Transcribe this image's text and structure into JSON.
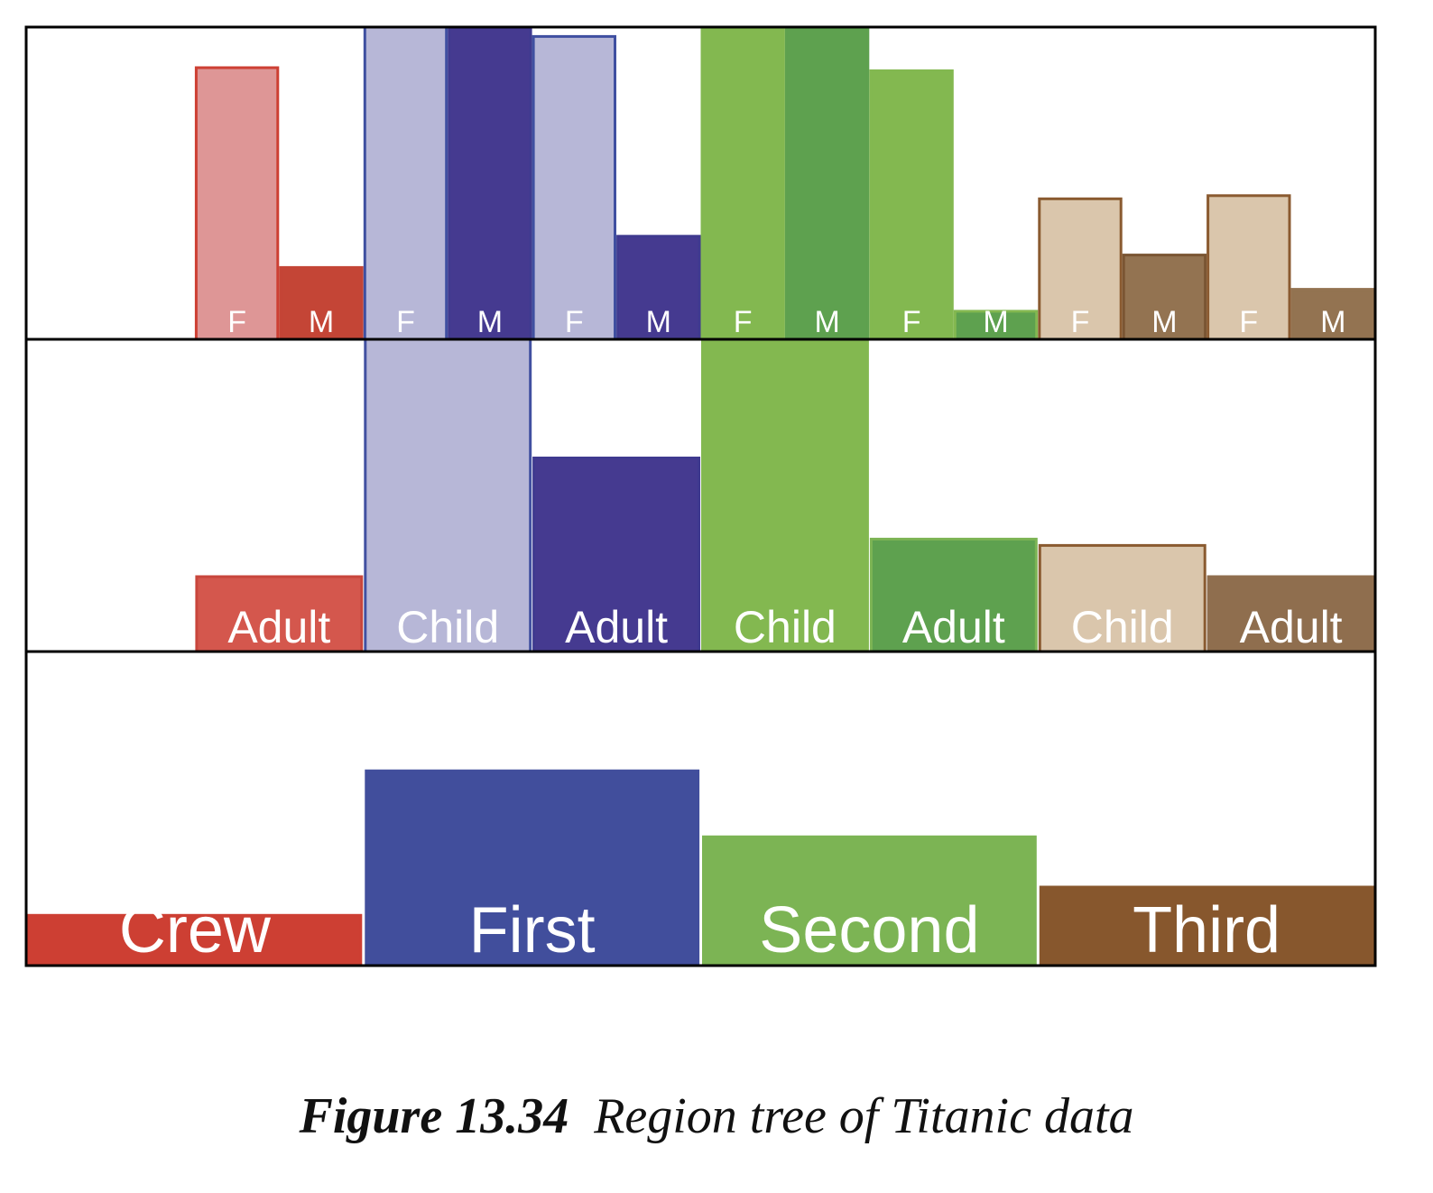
{
  "chart_data": {
    "type": "bar",
    "description_levels": [
      "class",
      "age",
      "sex"
    ],
    "levels": [
      {
        "name": "class",
        "bars": [
          {
            "label": "Crew",
            "value": 0.16,
            "fill": "#cd3f33",
            "stroke": "#cd3f33"
          },
          {
            "label": "First",
            "value": 0.62,
            "fill": "#414e9c",
            "stroke": "#414e9c"
          },
          {
            "label": "Second",
            "value": 0.41,
            "fill": "#7cb454",
            "stroke": "#7cb454"
          },
          {
            "label": "Third",
            "value": 0.25,
            "fill": "#87572d",
            "stroke": "#87572d"
          }
        ]
      },
      {
        "name": "age",
        "bars": [
          {
            "label": "",
            "value": 0.0,
            "fill": "#ffffff",
            "stroke": "#ffffff"
          },
          {
            "label": "Adult",
            "value": 0.24,
            "fill": "#d4574d",
            "stroke": "#c8463c"
          },
          {
            "label": "Child",
            "value": 1.0,
            "fill": "#b7b7d7",
            "stroke": "#4150a0"
          },
          {
            "label": "Adult",
            "value": 0.62,
            "fill": "#453a90",
            "stroke": "#3f3a8f"
          },
          {
            "label": "Child",
            "value": 1.0,
            "fill": "#83b850",
            "stroke": "#83b850"
          },
          {
            "label": "Adult",
            "value": 0.36,
            "fill": "#5ea14f",
            "stroke": "#7cb454"
          },
          {
            "label": "Child",
            "value": 0.34,
            "fill": "#dac6ac",
            "stroke": "#8a5a30"
          },
          {
            "label": "Adult",
            "value": 0.24,
            "fill": "#8f6e4e",
            "stroke": "#8f6e4e"
          }
        ]
      },
      {
        "name": "sex",
        "bars": [
          {
            "label": "",
            "value": 0.0,
            "fill": "#ffffff",
            "stroke": "#ffffff"
          },
          {
            "label": "",
            "value": 0.0,
            "fill": "#ffffff",
            "stroke": "#ffffff"
          },
          {
            "label": "F",
            "value": 0.87,
            "fill": "#de9696",
            "stroke": "#cd3f33"
          },
          {
            "label": "M",
            "value": 0.23,
            "fill": "#c44536",
            "stroke": "#c44536"
          },
          {
            "label": "F",
            "value": 1.0,
            "fill": "#b7b7d7",
            "stroke": "#3f4fa0"
          },
          {
            "label": "M",
            "value": 1.0,
            "fill": "#453a90",
            "stroke": "#3f3a8f"
          },
          {
            "label": "F",
            "value": 0.97,
            "fill": "#b7b7d7",
            "stroke": "#3f4fa0"
          },
          {
            "label": "M",
            "value": 0.33,
            "fill": "#453a90",
            "stroke": "#3f3a8f"
          },
          {
            "label": "F",
            "value": 1.0,
            "fill": "#83b850",
            "stroke": "#83b850"
          },
          {
            "label": "M",
            "value": 1.0,
            "fill": "#5ea14f",
            "stroke": "#5ea14f"
          },
          {
            "label": "F",
            "value": 0.86,
            "fill": "#83b850",
            "stroke": "#83b850"
          },
          {
            "label": "M",
            "value": 0.09,
            "fill": "#5ea14f",
            "stroke": "#83b850"
          },
          {
            "label": "F",
            "value": 0.45,
            "fill": "#dac6ac",
            "stroke": "#8a5a30"
          },
          {
            "label": "M",
            "value": 0.27,
            "fill": "#937351",
            "stroke": "#7a5533"
          },
          {
            "label": "F",
            "value": 0.46,
            "fill": "#dac6ac",
            "stroke": "#8a5a30"
          },
          {
            "label": "M",
            "value": 0.16,
            "fill": "#937351",
            "stroke": "#937351"
          }
        ]
      }
    ],
    "ylim": [
      0,
      1
    ],
    "grid": false,
    "legend": "none"
  },
  "caption": {
    "figure_number": "Figure 13.34",
    "text": "Region tree of Titanic data"
  }
}
